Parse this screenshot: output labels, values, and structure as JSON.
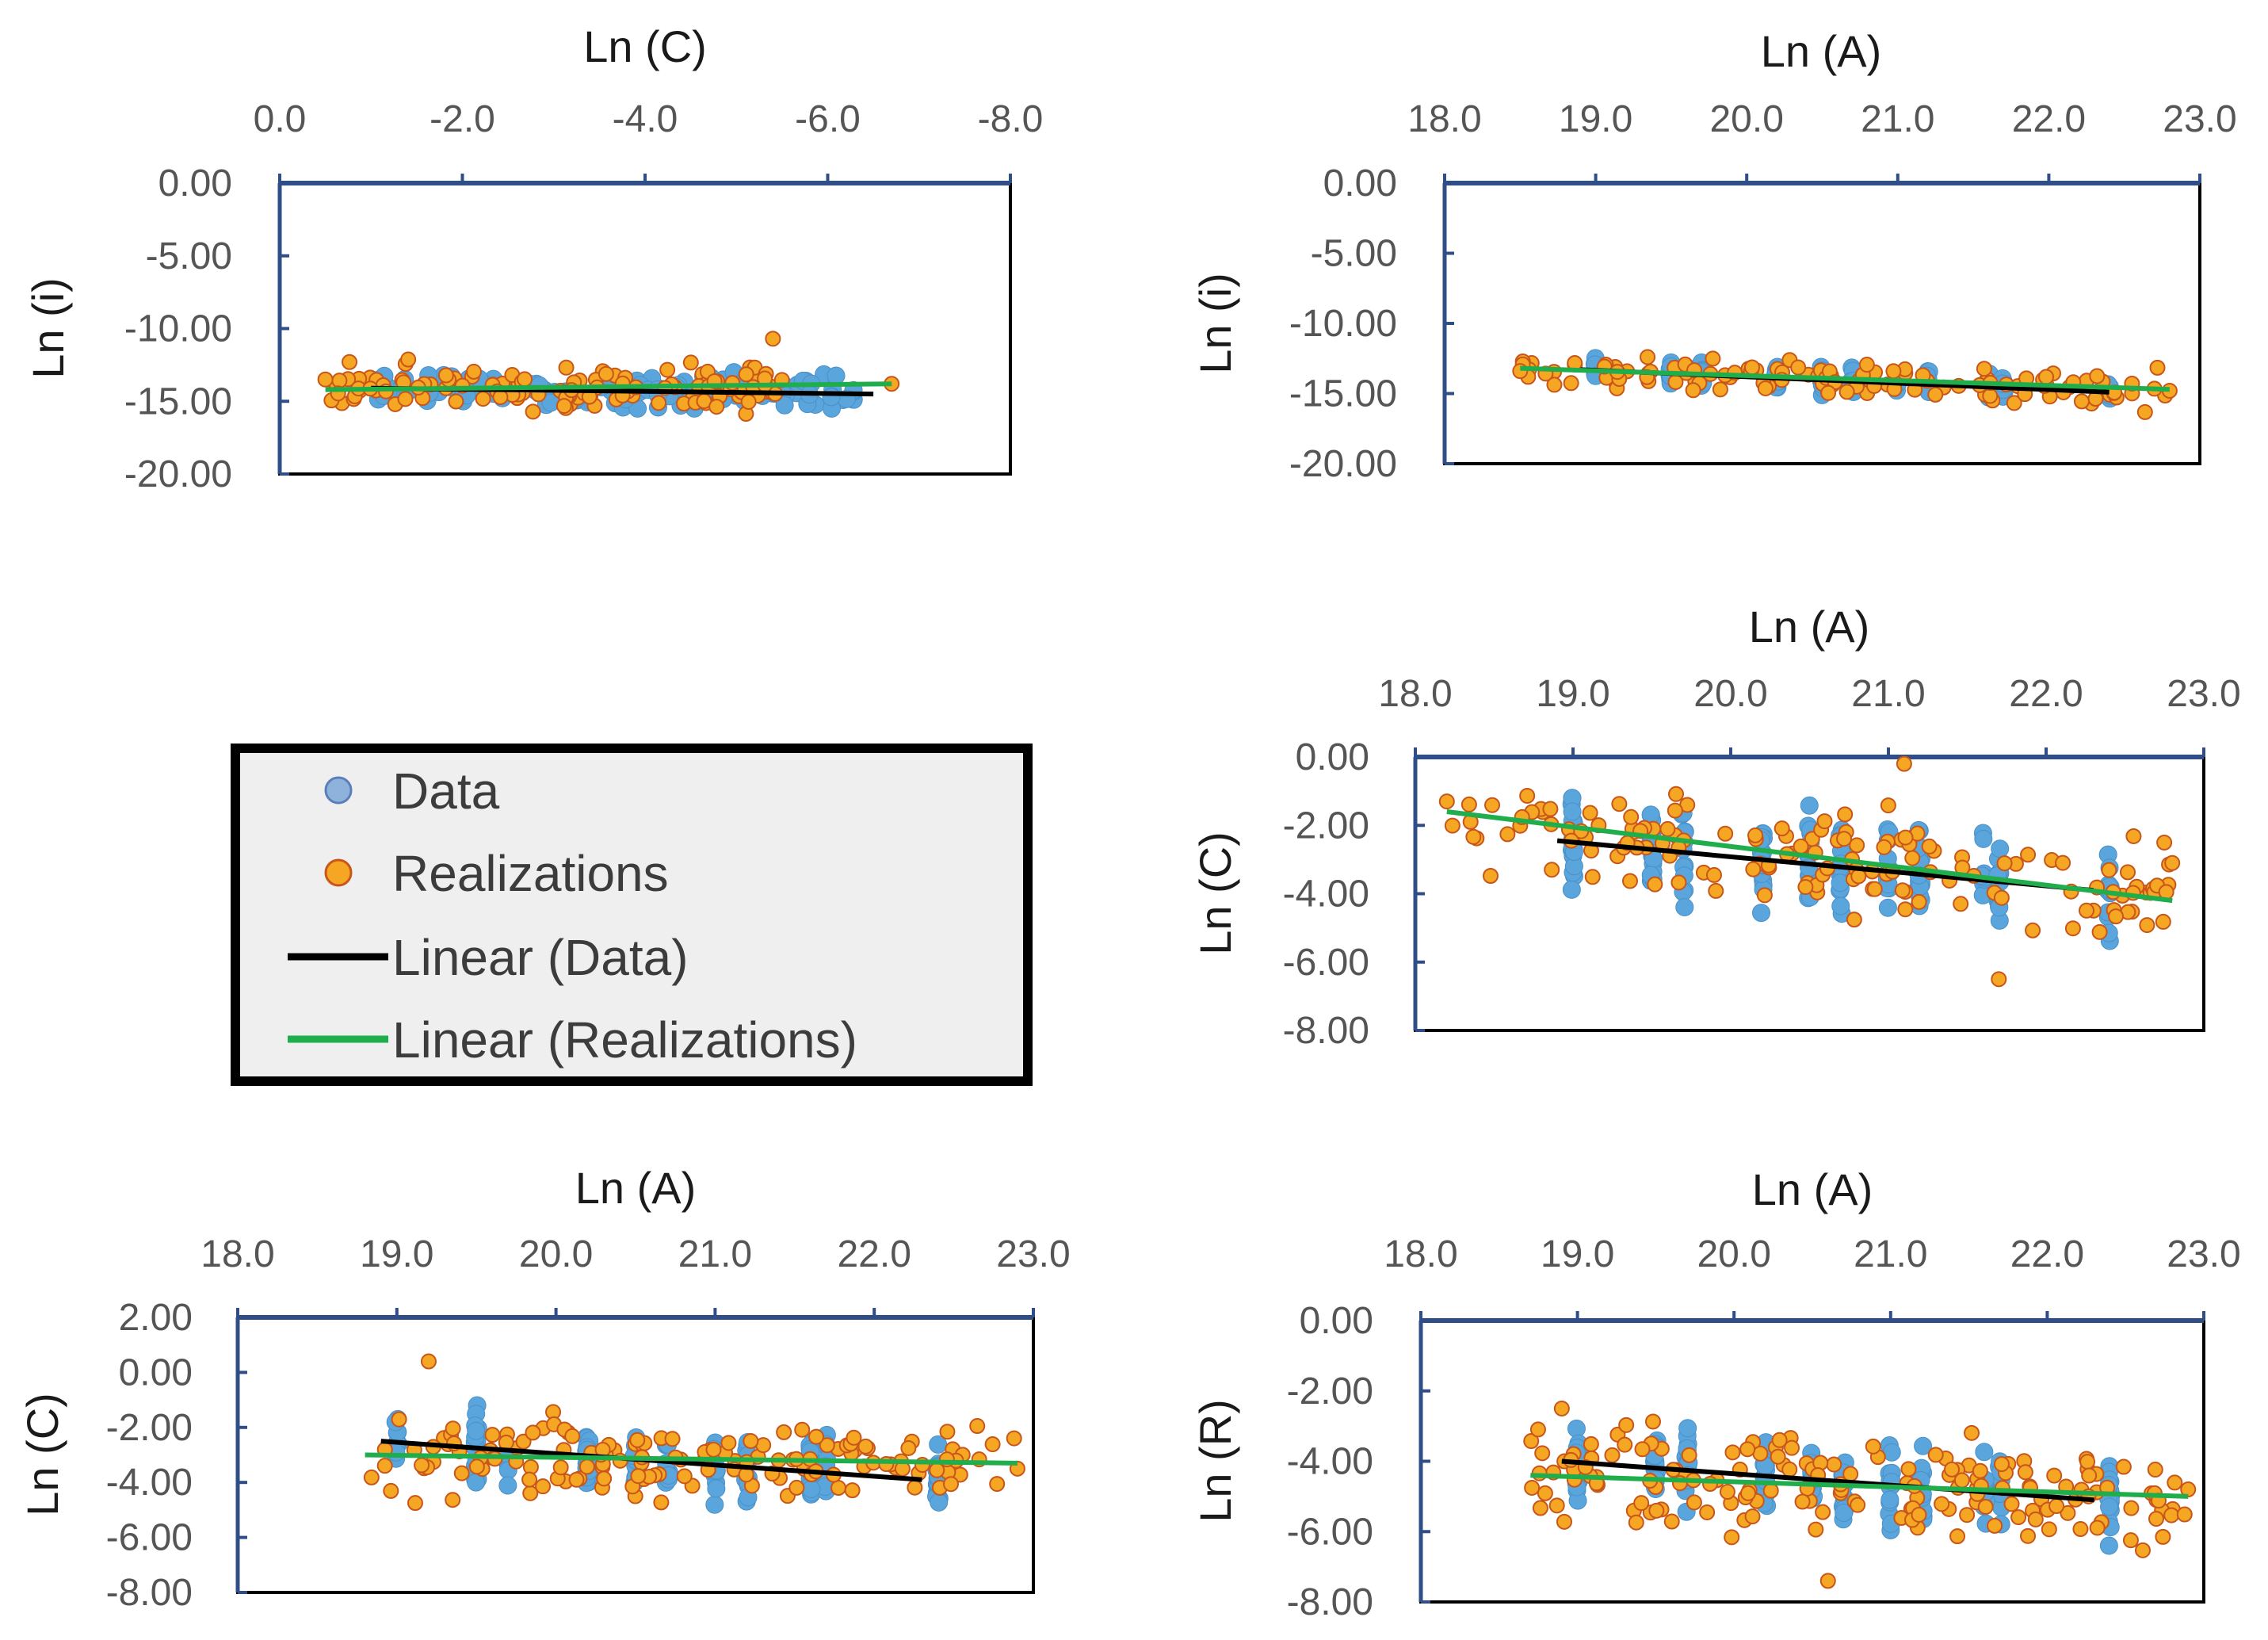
{
  "colors": {
    "data_point": "#5aa6dc",
    "data_point_legend": "#8fb2dc",
    "data_point_legend_edge": "#5b7fb8",
    "real_point": "#f5a623",
    "real_edge": "#c8561a",
    "trend_data": "#000000",
    "trend_real": "#1fae4b",
    "axis_top": "#2f4d87",
    "legend_bg": "#efefef"
  },
  "legend": {
    "items": [
      {
        "label": "Data",
        "kind": "data"
      },
      {
        "label": "Realizations",
        "kind": "realizations"
      },
      {
        "label": "Linear (Data)",
        "kind": "linear-data"
      },
      {
        "label": "Linear (Realizations)",
        "kind": "linear-realizations"
      }
    ]
  },
  "chart_data": [
    {
      "id": "c1",
      "type": "scatter",
      "title": "",
      "xlabel": "Ln (C)",
      "ylabel": "Ln (i)",
      "xlim": [
        0,
        -8
      ],
      "xticks": [
        "0.0",
        "-2.0",
        "-4.0",
        "-6.0",
        "-8.0"
      ],
      "ylim": [
        0,
        -20
      ],
      "yticks": [
        "0.00",
        "-5.00",
        "-10.00",
        "-15.00",
        "-20.00"
      ],
      "data_cloud": {
        "x_range": [
          -1.0,
          -6.5
        ],
        "y_range": [
          -11.5,
          -15.5
        ],
        "count": 150,
        "x_columns": []
      },
      "real_cloud": {
        "x_range": [
          -0.5,
          -5.5
        ],
        "y_range": [
          -11.0,
          -16.5
        ],
        "count": 130
      },
      "extra_real_points": [
        [
          -0.5,
          -13.5
        ],
        [
          -5.4,
          -10.7
        ],
        [
          -6.7,
          -13.8
        ]
      ],
      "trend_data": {
        "x": [
          -1.0,
          -6.5
        ],
        "y": [
          -14.1,
          -14.5
        ]
      },
      "trend_real": {
        "x": [
          -0.5,
          -6.7
        ],
        "y": [
          -14.2,
          -13.8
        ]
      }
    },
    {
      "id": "c2",
      "type": "scatter",
      "title": "",
      "xlabel": "Ln (A)",
      "ylabel": "Ln (i)",
      "xlim": [
        18,
        23
      ],
      "xticks": [
        "18.0",
        "19.0",
        "20.0",
        "21.0",
        "22.0",
        "23.0"
      ],
      "ylim": [
        0,
        -20
      ],
      "yticks": [
        "0.00",
        "-5.00",
        "-10.00",
        "-15.00",
        "-20.00"
      ],
      "data_cloud": {
        "x_range": [
          18.9,
          22.4
        ],
        "y_range": [
          -12.0,
          -15.5
        ],
        "count": 120,
        "x_columns": [
          19.0,
          19.5,
          19.7,
          20.2,
          20.5,
          20.7,
          21.0,
          21.2,
          21.6,
          21.7,
          22.4
        ]
      },
      "real_cloud": {
        "x_range": [
          18.5,
          22.8
        ],
        "y_range": [
          -12.0,
          -16.5
        ],
        "count": 120
      },
      "extra_real_points": [
        [
          18.5,
          -13.4
        ],
        [
          22.8,
          -14.8
        ]
      ],
      "trend_data": {
        "x": [
          18.9,
          22.4
        ],
        "y": [
          -13.3,
          -14.9
        ]
      },
      "trend_real": {
        "x": [
          18.5,
          22.8
        ],
        "y": [
          -13.2,
          -14.7
        ]
      }
    },
    {
      "id": "c3",
      "type": "scatter",
      "title": "",
      "xlabel": "Ln (A)",
      "ylabel": "Ln (C)",
      "xlim": [
        18,
        23
      ],
      "xticks": [
        "18.0",
        "19.0",
        "20.0",
        "21.0",
        "22.0",
        "23.0"
      ],
      "ylim": [
        0,
        -8
      ],
      "yticks": [
        "0.00",
        "-2.00",
        "-4.00",
        "-6.00",
        "-8.00"
      ],
      "data_cloud": {
        "x_range": [
          18.9,
          22.4
        ],
        "y_range": [
          -1.2,
          -6.5
        ],
        "count": 170,
        "x_columns": [
          19.0,
          19.5,
          19.7,
          20.2,
          20.5,
          20.7,
          21.0,
          21.2,
          21.6,
          21.7,
          22.4
        ]
      },
      "real_cloud": {
        "x_range": [
          18.2,
          22.8
        ],
        "y_range": [
          -1.0,
          -6.5
        ],
        "count": 150
      },
      "extra_real_points": [
        [
          18.2,
          -1.3
        ],
        [
          21.1,
          -0.2
        ],
        [
          22.8,
          -3.1
        ],
        [
          21.7,
          -6.5
        ]
      ],
      "trend_data": {
        "x": [
          18.9,
          22.3
        ],
        "y": [
          -2.45,
          -3.9
        ]
      },
      "trend_real": {
        "x": [
          18.2,
          22.8
        ],
        "y": [
          -1.6,
          -4.2
        ]
      }
    },
    {
      "id": "c4",
      "type": "scatter",
      "title": "",
      "xlabel": "Ln (A)",
      "ylabel": "Ln (C)",
      "xlim": [
        18,
        23
      ],
      "xticks": [
        "18.0",
        "19.0",
        "20.0",
        "21.0",
        "22.0",
        "23.0"
      ],
      "ylim": [
        2,
        -8
      ],
      "yticks": [
        "2.00",
        "0.00",
        "-2.00",
        "-4.00",
        "-6.00",
        "-8.00"
      ],
      "data_cloud": {
        "x_range": [
          18.9,
          22.4
        ],
        "y_range": [
          -1.2,
          -6.5
        ],
        "count": 170,
        "x_columns": [
          19.0,
          19.5,
          19.7,
          20.2,
          20.5,
          20.7,
          21.0,
          21.2,
          21.6,
          21.7,
          22.4
        ]
      },
      "real_cloud": {
        "x_range": [
          18.8,
          22.9
        ],
        "y_range": [
          -0.8,
          -6.0
        ],
        "count": 150
      },
      "extra_real_points": [
        [
          19.2,
          0.4
        ],
        [
          22.9,
          -3.5
        ]
      ],
      "trend_data": {
        "x": [
          18.9,
          22.3
        ],
        "y": [
          -2.5,
          -3.9
        ]
      },
      "trend_real": {
        "x": [
          18.8,
          22.9
        ],
        "y": [
          -3.0,
          -3.3
        ]
      }
    },
    {
      "id": "c5",
      "type": "scatter",
      "title": "",
      "xlabel": "Ln (A)",
      "ylabel": "Ln (R)",
      "xlim": [
        18,
        23
      ],
      "xticks": [
        "18.0",
        "19.0",
        "20.0",
        "21.0",
        "22.0",
        "23.0"
      ],
      "ylim": [
        0,
        -8
      ],
      "yticks": [
        "0.00",
        "-2.00",
        "-4.00",
        "-6.00",
        "-8.00"
      ],
      "data_cloud": {
        "x_range": [
          18.9,
          22.4
        ],
        "y_range": [
          -2.3,
          -6.4
        ],
        "count": 170,
        "x_columns": [
          19.0,
          19.5,
          19.7,
          20.2,
          20.5,
          20.7,
          21.0,
          21.2,
          21.6,
          21.7,
          22.4
        ]
      },
      "real_cloud": {
        "x_range": [
          18.7,
          22.9
        ],
        "y_range": [
          -2.2,
          -7.4
        ],
        "count": 170
      },
      "extra_real_points": [
        [
          18.9,
          -2.5
        ],
        [
          20.6,
          -7.4
        ],
        [
          22.9,
          -4.8
        ]
      ],
      "trend_data": {
        "x": [
          18.9,
          22.3
        ],
        "y": [
          -4.0,
          -5.1
        ]
      },
      "trend_real": {
        "x": [
          18.7,
          22.9
        ],
        "y": [
          -4.4,
          -5.0
        ]
      }
    }
  ]
}
